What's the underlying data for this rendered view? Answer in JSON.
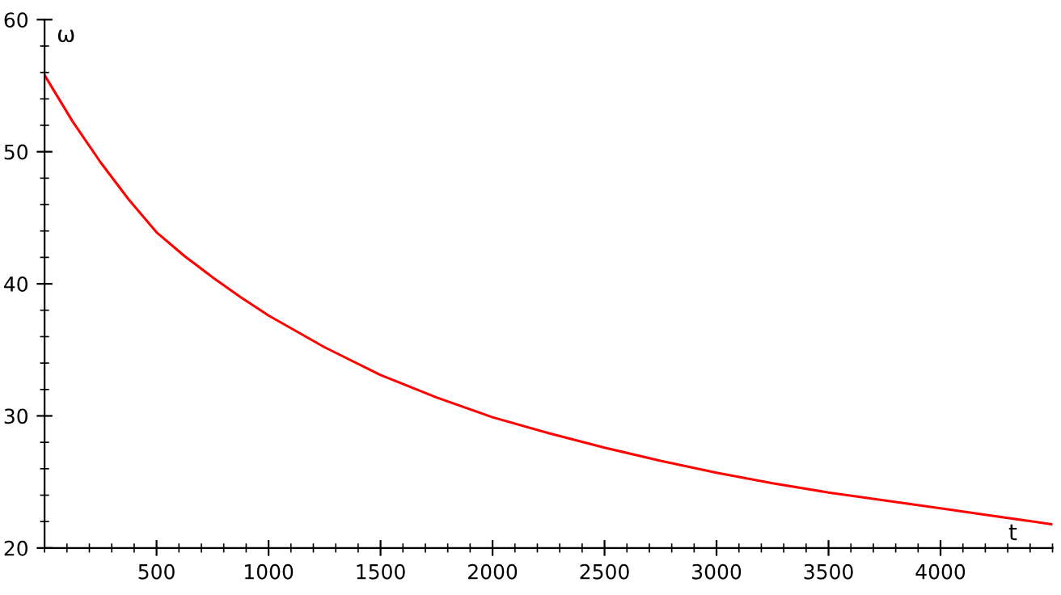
{
  "chart_data": {
    "type": "line",
    "xlabel": "t",
    "ylabel": "ω",
    "series": [
      {
        "color": "#ff0000",
        "x": [
          0,
          125,
          250,
          375,
          500,
          625,
          750,
          875,
          1000,
          1250,
          1500,
          1750,
          2000,
          2250,
          2500,
          2750,
          3000,
          3250,
          3500,
          3750,
          4000,
          4250,
          4496
        ],
        "values": [
          55.8,
          52.3,
          49.2,
          46.4,
          43.9,
          42.1,
          40.5,
          39.0,
          37.6,
          35.2,
          33.1,
          31.4,
          29.9,
          28.7,
          27.6,
          26.6,
          25.7,
          24.9,
          24.2,
          23.6,
          23.0,
          22.4,
          21.8
        ]
      }
    ],
    "xlim": [
      0,
      4500
    ],
    "xticks": [
      500,
      1000,
      1500,
      2000,
      2500,
      3000,
      3500,
      4000
    ],
    "ylim": [
      20,
      60
    ],
    "yticks": [
      20,
      30,
      40,
      50,
      60
    ],
    "grid": false,
    "legend": false,
    "marker": "none",
    "line_style": "solid"
  }
}
